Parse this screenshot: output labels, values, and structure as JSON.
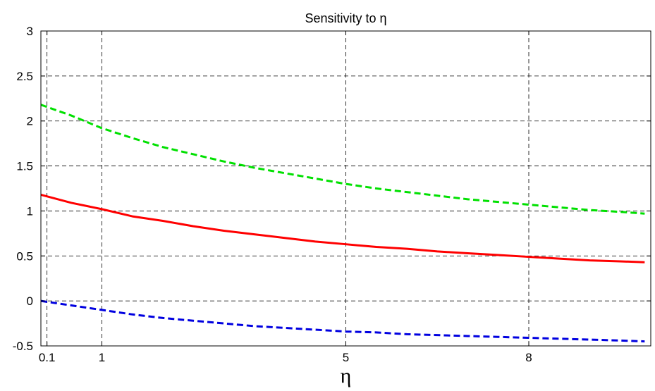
{
  "chart_data": {
    "type": "line",
    "title": "Sensitivity to η",
    "xlabel": "η",
    "ylabel": "",
    "xlim": [
      0,
      10
    ],
    "ylim": [
      -0.5,
      3
    ],
    "xticks": [
      0.1,
      1,
      5,
      8
    ],
    "xtick_labels": [
      "0.1",
      "1",
      "5",
      "8"
    ],
    "yticks": [
      -0.5,
      0,
      0.5,
      1,
      1.5,
      2,
      2.5,
      3
    ],
    "ytick_labels": [
      "-0.5",
      "0",
      "0.5",
      "1",
      "1.5",
      "2",
      "2.5",
      "3"
    ],
    "grid": true,
    "x": [
      0,
      0.5,
      1,
      1.5,
      2,
      2.5,
      3,
      3.5,
      4,
      4.5,
      5,
      5.5,
      6,
      6.5,
      7,
      7.5,
      8,
      8.5,
      9,
      9.5,
      9.9
    ],
    "series": [
      {
        "style": "dashed",
        "color": "#00e000",
        "values": [
          2.18,
          2.06,
          1.92,
          1.81,
          1.71,
          1.63,
          1.55,
          1.48,
          1.42,
          1.36,
          1.3,
          1.25,
          1.21,
          1.17,
          1.13,
          1.1,
          1.07,
          1.04,
          1.01,
          0.99,
          0.97
        ]
      },
      {
        "style": "solid",
        "color": "#ff0000",
        "values": [
          1.18,
          1.09,
          1.02,
          0.94,
          0.89,
          0.83,
          0.78,
          0.74,
          0.7,
          0.66,
          0.63,
          0.6,
          0.58,
          0.55,
          0.53,
          0.51,
          0.49,
          0.47,
          0.45,
          0.44,
          0.43
        ]
      },
      {
        "style": "dashed",
        "color": "#0000e0",
        "values": [
          0.0,
          -0.05,
          -0.1,
          -0.15,
          -0.19,
          -0.22,
          -0.25,
          -0.28,
          -0.3,
          -0.32,
          -0.34,
          -0.35,
          -0.37,
          -0.38,
          -0.39,
          -0.4,
          -0.41,
          -0.42,
          -0.43,
          -0.44,
          -0.45
        ]
      }
    ]
  }
}
